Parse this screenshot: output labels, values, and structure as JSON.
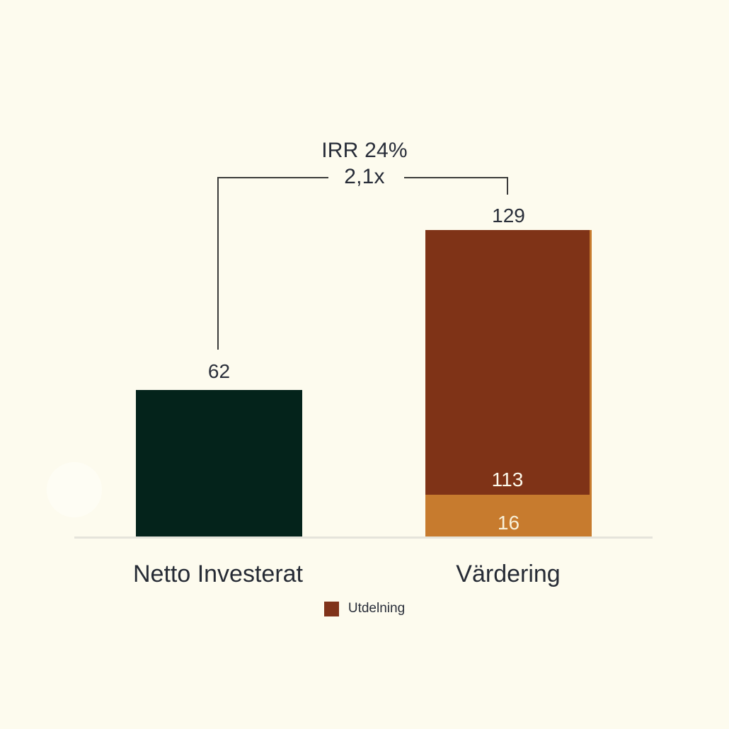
{
  "chart_data": {
    "type": "bar",
    "stacked": true,
    "orientation": "vertical",
    "background": "#FDFBEE",
    "grid": false,
    "legend_position": "bottom-center",
    "annotations": {
      "irr": "IRR 24%",
      "multiple": "2,1x"
    },
    "categories": [
      "Netto Investerat",
      "Värdering"
    ],
    "bars": [
      {
        "category": "Netto Investerat",
        "total": 62,
        "total_label": "62",
        "segments": [
          {
            "value": 62,
            "color": "#04231B"
          }
        ]
      },
      {
        "category": "Värdering",
        "total": 129,
        "total_label": "129",
        "segments": [
          {
            "value": 113,
            "label": "113",
            "color": "#7F3317"
          },
          {
            "value": 16,
            "label": "16",
            "color": "#C77B2E"
          }
        ]
      }
    ],
    "legend": [
      {
        "label": "Utdelning",
        "color": "#80331A"
      }
    ],
    "colors": {
      "dark_green": "#04231B",
      "brown": "#7F3317",
      "orange": "#C77B2E",
      "text": "#2A2F3A",
      "inside_label_text": "#FCF8EA",
      "connector_line": "#3B3B3A",
      "baseline": "#E5E4DB",
      "background": "#FDFBEE"
    }
  }
}
